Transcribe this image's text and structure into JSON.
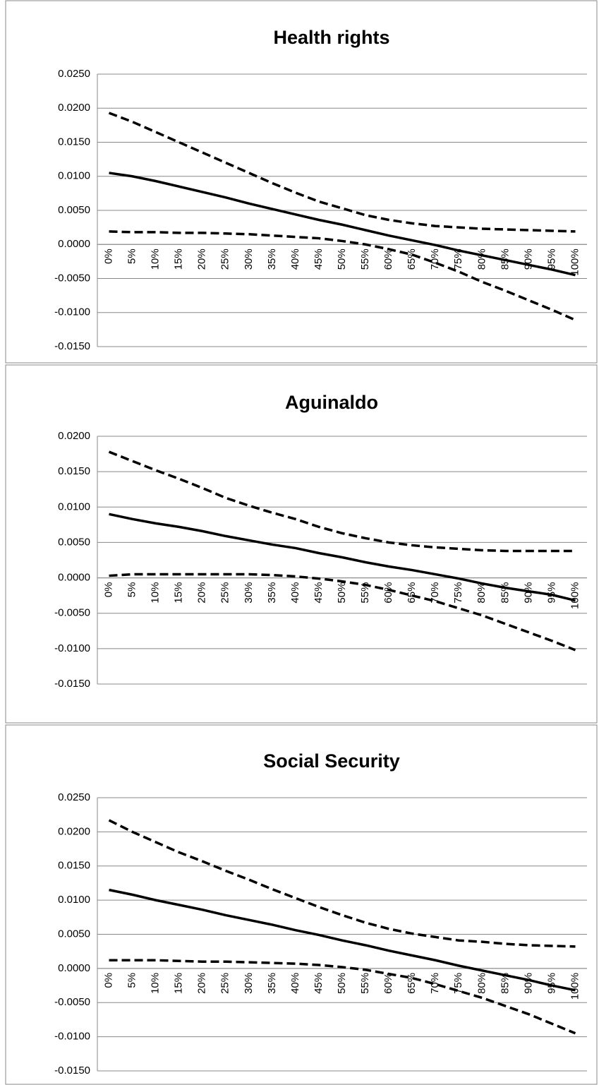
{
  "chart_data": [
    {
      "type": "line",
      "title": "Health rights",
      "categories": [
        "0%",
        "5%",
        "10%",
        "15%",
        "20%",
        "25%",
        "30%",
        "35%",
        "40%",
        "45%",
        "50%",
        "55%",
        "60%",
        "65%",
        "70%",
        "75%",
        "80%",
        "85%",
        "90%",
        "95%",
        "100%"
      ],
      "series": [
        {
          "color": "#000000",
          "dashed": false,
          "values": [
            0.0105,
            0.01,
            0.0093,
            0.0085,
            0.0077,
            0.0069,
            0.006,
            0.0052,
            0.0044,
            0.0036,
            0.0029,
            0.0021,
            0.0013,
            0.0006,
            -0.0001,
            -0.0009,
            -0.0016,
            -0.0023,
            -0.003,
            -0.0037,
            -0.0045
          ]
        },
        {
          "color": "#000000",
          "dashed": true,
          "values": [
            0.0193,
            0.018,
            0.0165,
            0.015,
            0.0135,
            0.012,
            0.0105,
            0.009,
            0.0076,
            0.0063,
            0.0053,
            0.0043,
            0.0036,
            0.0031,
            0.0027,
            0.0025,
            0.0023,
            0.0022,
            0.0021,
            0.002,
            0.0019
          ]
        },
        {
          "color": "#000000",
          "dashed": true,
          "values": [
            0.0019,
            0.0018,
            0.0018,
            0.0017,
            0.0017,
            0.0016,
            0.0015,
            0.0013,
            0.0011,
            0.0009,
            0.0005,
            0.0,
            -0.0007,
            -0.0015,
            -0.0027,
            -0.004,
            -0.0055,
            -0.0068,
            -0.0082,
            -0.0096,
            -0.0111
          ]
        }
      ],
      "ylim": [
        -0.015,
        0.025
      ],
      "yticks": [
        {
          "value": 0.025,
          "label": "0.0250"
        },
        {
          "value": 0.02,
          "label": "0.0200"
        },
        {
          "value": 0.015,
          "label": "0.0150"
        },
        {
          "value": 0.01,
          "label": "0.0100"
        },
        {
          "value": 0.005,
          "label": "0.0050"
        },
        {
          "value": 0,
          "label": "0.0000"
        },
        {
          "value": -0.005,
          "label": "-0.0050"
        },
        {
          "value": -0.01,
          "label": "-0.0100"
        },
        {
          "value": -0.015,
          "label": "-0.0150"
        }
      ],
      "grid": true
    },
    {
      "type": "line",
      "title": "Aguinaldo",
      "categories": [
        "0%",
        "5%",
        "10%",
        "15%",
        "20%",
        "25%",
        "30%",
        "35%",
        "40%",
        "45%",
        "50%",
        "55%",
        "60%",
        "65%",
        "70%",
        "75%",
        "80%",
        "85%",
        "90%",
        "95%",
        "100%"
      ],
      "series": [
        {
          "color": "#000000",
          "dashed": false,
          "values": [
            0.009,
            0.0083,
            0.0077,
            0.0072,
            0.0066,
            0.0059,
            0.0053,
            0.0047,
            0.0042,
            0.0035,
            0.0029,
            0.0022,
            0.0016,
            0.0011,
            0.0005,
            -0.0001,
            -0.0008,
            -0.0014,
            -0.0019,
            -0.0024,
            -0.0032
          ]
        },
        {
          "color": "#000000",
          "dashed": true,
          "values": [
            0.0178,
            0.0165,
            0.0152,
            0.014,
            0.0127,
            0.0113,
            0.0102,
            0.0092,
            0.0083,
            0.0072,
            0.0063,
            0.0056,
            0.005,
            0.0046,
            0.0043,
            0.0041,
            0.0039,
            0.0038,
            0.0038,
            0.0038,
            0.0038
          ]
        },
        {
          "color": "#000000",
          "dashed": true,
          "values": [
            0.0003,
            0.0005,
            0.0005,
            0.0005,
            0.0005,
            0.0005,
            0.0005,
            0.0004,
            0.0002,
            -0.0001,
            -0.0005,
            -0.001,
            -0.0017,
            -0.0025,
            -0.0033,
            -0.0043,
            -0.0053,
            -0.0065,
            -0.0077,
            -0.0089,
            -0.0102
          ]
        }
      ],
      "ylim": [
        -0.015,
        0.02
      ],
      "yticks": [
        {
          "value": 0.02,
          "label": "0.0200"
        },
        {
          "value": 0.015,
          "label": "0.0150"
        },
        {
          "value": 0.01,
          "label": "0.0100"
        },
        {
          "value": 0.005,
          "label": "0.0050"
        },
        {
          "value": 0,
          "label": "0.0000"
        },
        {
          "value": -0.005,
          "label": "-0.0050"
        },
        {
          "value": -0.01,
          "label": "-0.0100"
        },
        {
          "value": -0.015,
          "label": "-0.0150"
        }
      ],
      "grid": true
    },
    {
      "type": "line",
      "title": "Social Security",
      "categories": [
        "0%",
        "5%",
        "10%",
        "15%",
        "20%",
        "25%",
        "30%",
        "35%",
        "40%",
        "45%",
        "50%",
        "55%",
        "60%",
        "65%",
        "70%",
        "75%",
        "80%",
        "85%",
        "90%",
        "95%",
        "100%"
      ],
      "series": [
        {
          "color": "#000000",
          "dashed": false,
          "values": [
            0.0115,
            0.0108,
            0.01,
            0.0093,
            0.0086,
            0.0078,
            0.0071,
            0.0064,
            0.0056,
            0.0049,
            0.0041,
            0.0034,
            0.0026,
            0.0019,
            0.0012,
            0.0004,
            -0.0003,
            -0.001,
            -0.0017,
            -0.0025,
            -0.0032
          ]
        },
        {
          "color": "#000000",
          "dashed": true,
          "values": [
            0.0217,
            0.02,
            0.0185,
            0.017,
            0.0157,
            0.0143,
            0.013,
            0.0116,
            0.0103,
            0.009,
            0.0078,
            0.0067,
            0.0058,
            0.0051,
            0.0046,
            0.0041,
            0.0039,
            0.0036,
            0.0034,
            0.0033,
            0.0032
          ]
        },
        {
          "color": "#000000",
          "dashed": true,
          "values": [
            0.0012,
            0.0012,
            0.0012,
            0.0011,
            0.001,
            0.001,
            0.0009,
            0.0008,
            0.0007,
            0.0005,
            0.0002,
            -0.0002,
            -0.0008,
            -0.0014,
            -0.0023,
            -0.0033,
            -0.0043,
            -0.0055,
            -0.0067,
            -0.0081,
            -0.0095
          ]
        }
      ],
      "ylim": [
        -0.015,
        0.025
      ],
      "yticks": [
        {
          "value": 0.025,
          "label": "0.0250"
        },
        {
          "value": 0.02,
          "label": "0.0200"
        },
        {
          "value": 0.015,
          "label": "0.0150"
        },
        {
          "value": 0.01,
          "label": "0.0100"
        },
        {
          "value": 0.005,
          "label": "0.0050"
        },
        {
          "value": 0,
          "label": "0.0000"
        },
        {
          "value": -0.005,
          "label": "-0.0050"
        },
        {
          "value": -0.01,
          "label": "-0.0100"
        },
        {
          "value": -0.015,
          "label": "-0.0150"
        }
      ],
      "grid": true
    }
  ]
}
